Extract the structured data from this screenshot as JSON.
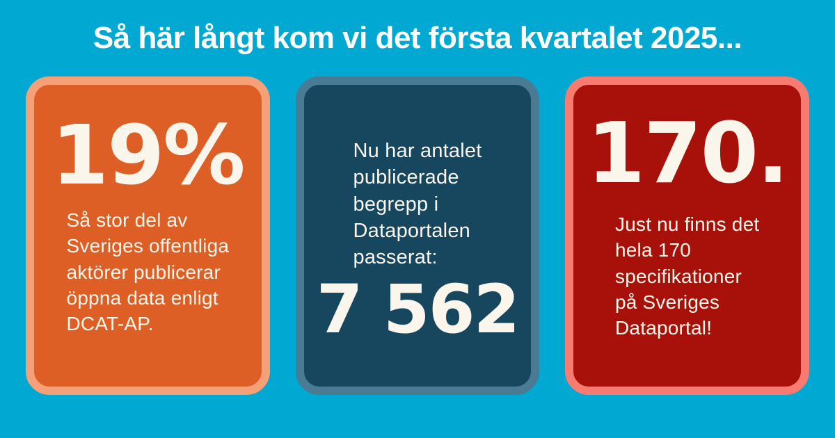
{
  "page": {
    "title": "Så här långt kom vi det första kvartalet 2025...",
    "background_color": "#00a8d2",
    "title_color": "#ffffff",
    "card_text_color": "#faf6ec"
  },
  "cards": [
    {
      "name": "dcat-ap-share",
      "big_number": "19%",
      "body": "Så stor del av\nSveriges offentliga\naktörer publicerar\nöppna data enligt\nDCAT-AP.",
      "fill_color": "#dd5f26",
      "border_color": "#f6a077"
    },
    {
      "name": "published-concepts",
      "lead": "Nu har antalet\npublicerade\nbegrepp i\nDataportalen\npasserat:",
      "big_number": "7 562",
      "fill_color": "#17465f",
      "border_color": "#4a7b95"
    },
    {
      "name": "specifications-count",
      "big_number": "170.",
      "body": "Just nu finns det\nhela 170\nspecifikationer\npå Sveriges\nDataportal!",
      "fill_color": "#a81109",
      "border_color": "#f87b72"
    }
  ]
}
